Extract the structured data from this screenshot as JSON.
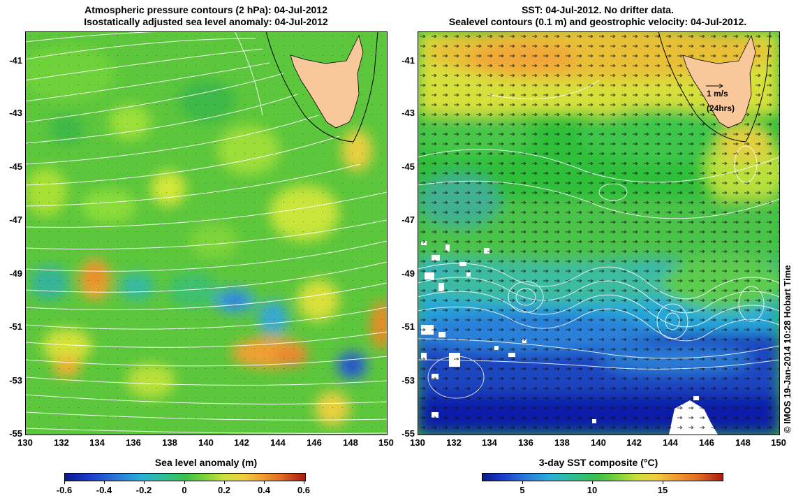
{
  "left_panel": {
    "title_line1": "Atmospheric pressure contours (2 hPa): 04-Jul-2012",
    "title_line2": "Isostatically adjusted sea level anomaly: 04-Jul-2012",
    "x_label": "Sea level anomaly (m)",
    "colorbar_ticks": [
      "-0.6",
      "-0.4",
      "-0.2",
      "0",
      "0.2",
      "0.4",
      "0.6"
    ]
  },
  "right_panel": {
    "title_line1": "SST: 04-Jul-2012. No drifter data.",
    "title_line2": "Sealevel contours (0.1 m) and geostrophic velocity: 04-Jul-2012.",
    "x_label": "3-day SST composite (°C)",
    "colorbar_ticks": [
      "5",
      "10",
      "15"
    ],
    "velocity_legend_line1": "1 m/s",
    "velocity_legend_line2": "(24hrs)"
  },
  "axes": {
    "lat_ticks": [
      "-41",
      "-43",
      "-45",
      "-47",
      "-49",
      "-51",
      "-53",
      "-55"
    ],
    "lon_ticks": [
      "130",
      "132",
      "134",
      "136",
      "138",
      "140",
      "142",
      "144",
      "146",
      "148",
      "150"
    ]
  },
  "credit": "© IMOS 19-Jan-2014 10:28 Hobart Time",
  "colors": {
    "land": "#f9c89a",
    "sla_bg": "#5cc63c",
    "sst_bg": "#2fbe3a"
  }
}
